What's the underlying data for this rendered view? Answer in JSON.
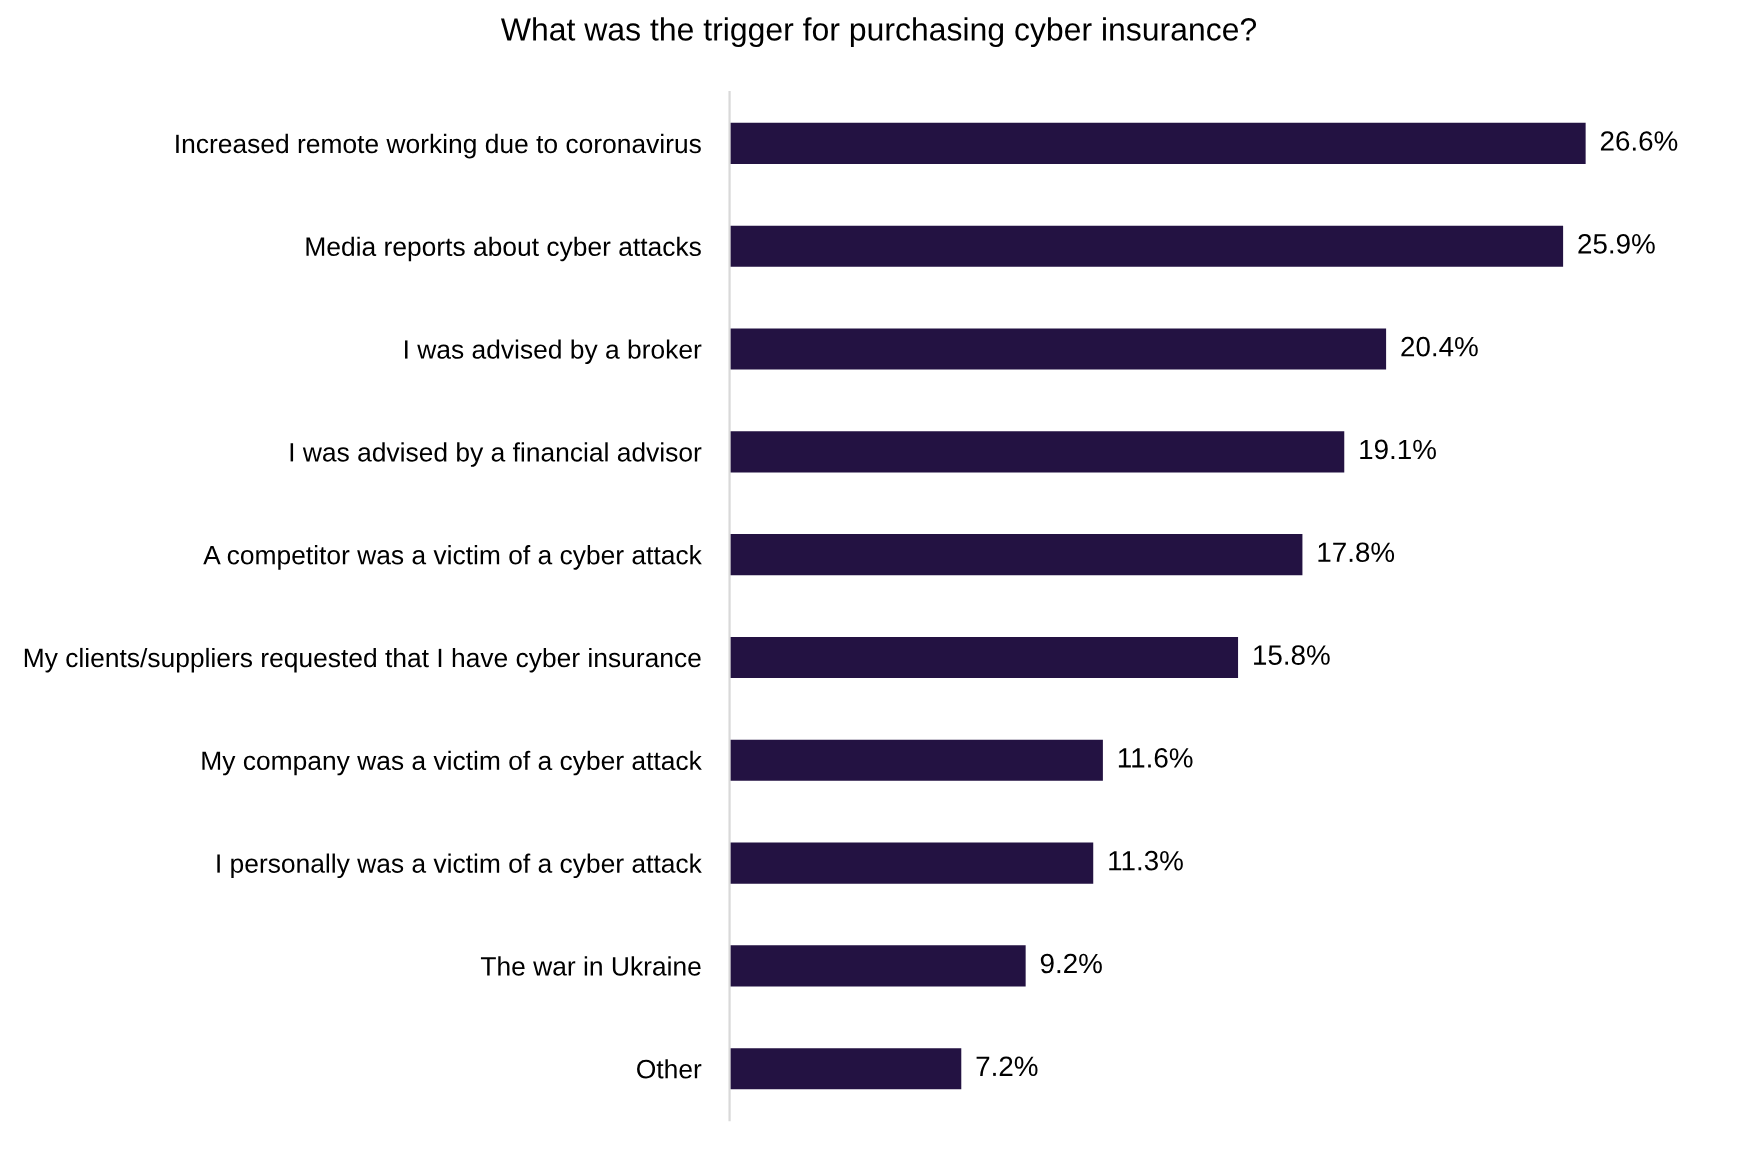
{
  "chart_data": {
    "type": "bar",
    "orientation": "horizontal",
    "title": "What was the trigger for purchasing cyber insurance?",
    "categories": [
      "Increased remote working due to coronavirus",
      "Media reports about cyber attacks",
      "I was advised by a broker",
      "I was advised by a financial advisor",
      "A competitor was a victim of a cyber attack",
      "My clients/suppliers requested that I have cyber insurance",
      "My company was a victim of a cyber attack",
      "I personally was a victim of a cyber attack",
      "The war in Ukraine",
      "Other"
    ],
    "values": [
      26.6,
      25.9,
      20.4,
      19.1,
      17.8,
      15.8,
      11.6,
      11.3,
      9.2,
      7.2
    ],
    "value_labels": [
      "26.6%",
      "25.9%",
      "20.4%",
      "19.1%",
      "17.8%",
      "15.8%",
      "11.6%",
      "11.3%",
      "9.2%",
      "7.2%"
    ],
    "color": "#231242",
    "grid": false,
    "legend": false,
    "tick_labels": "y"
  }
}
